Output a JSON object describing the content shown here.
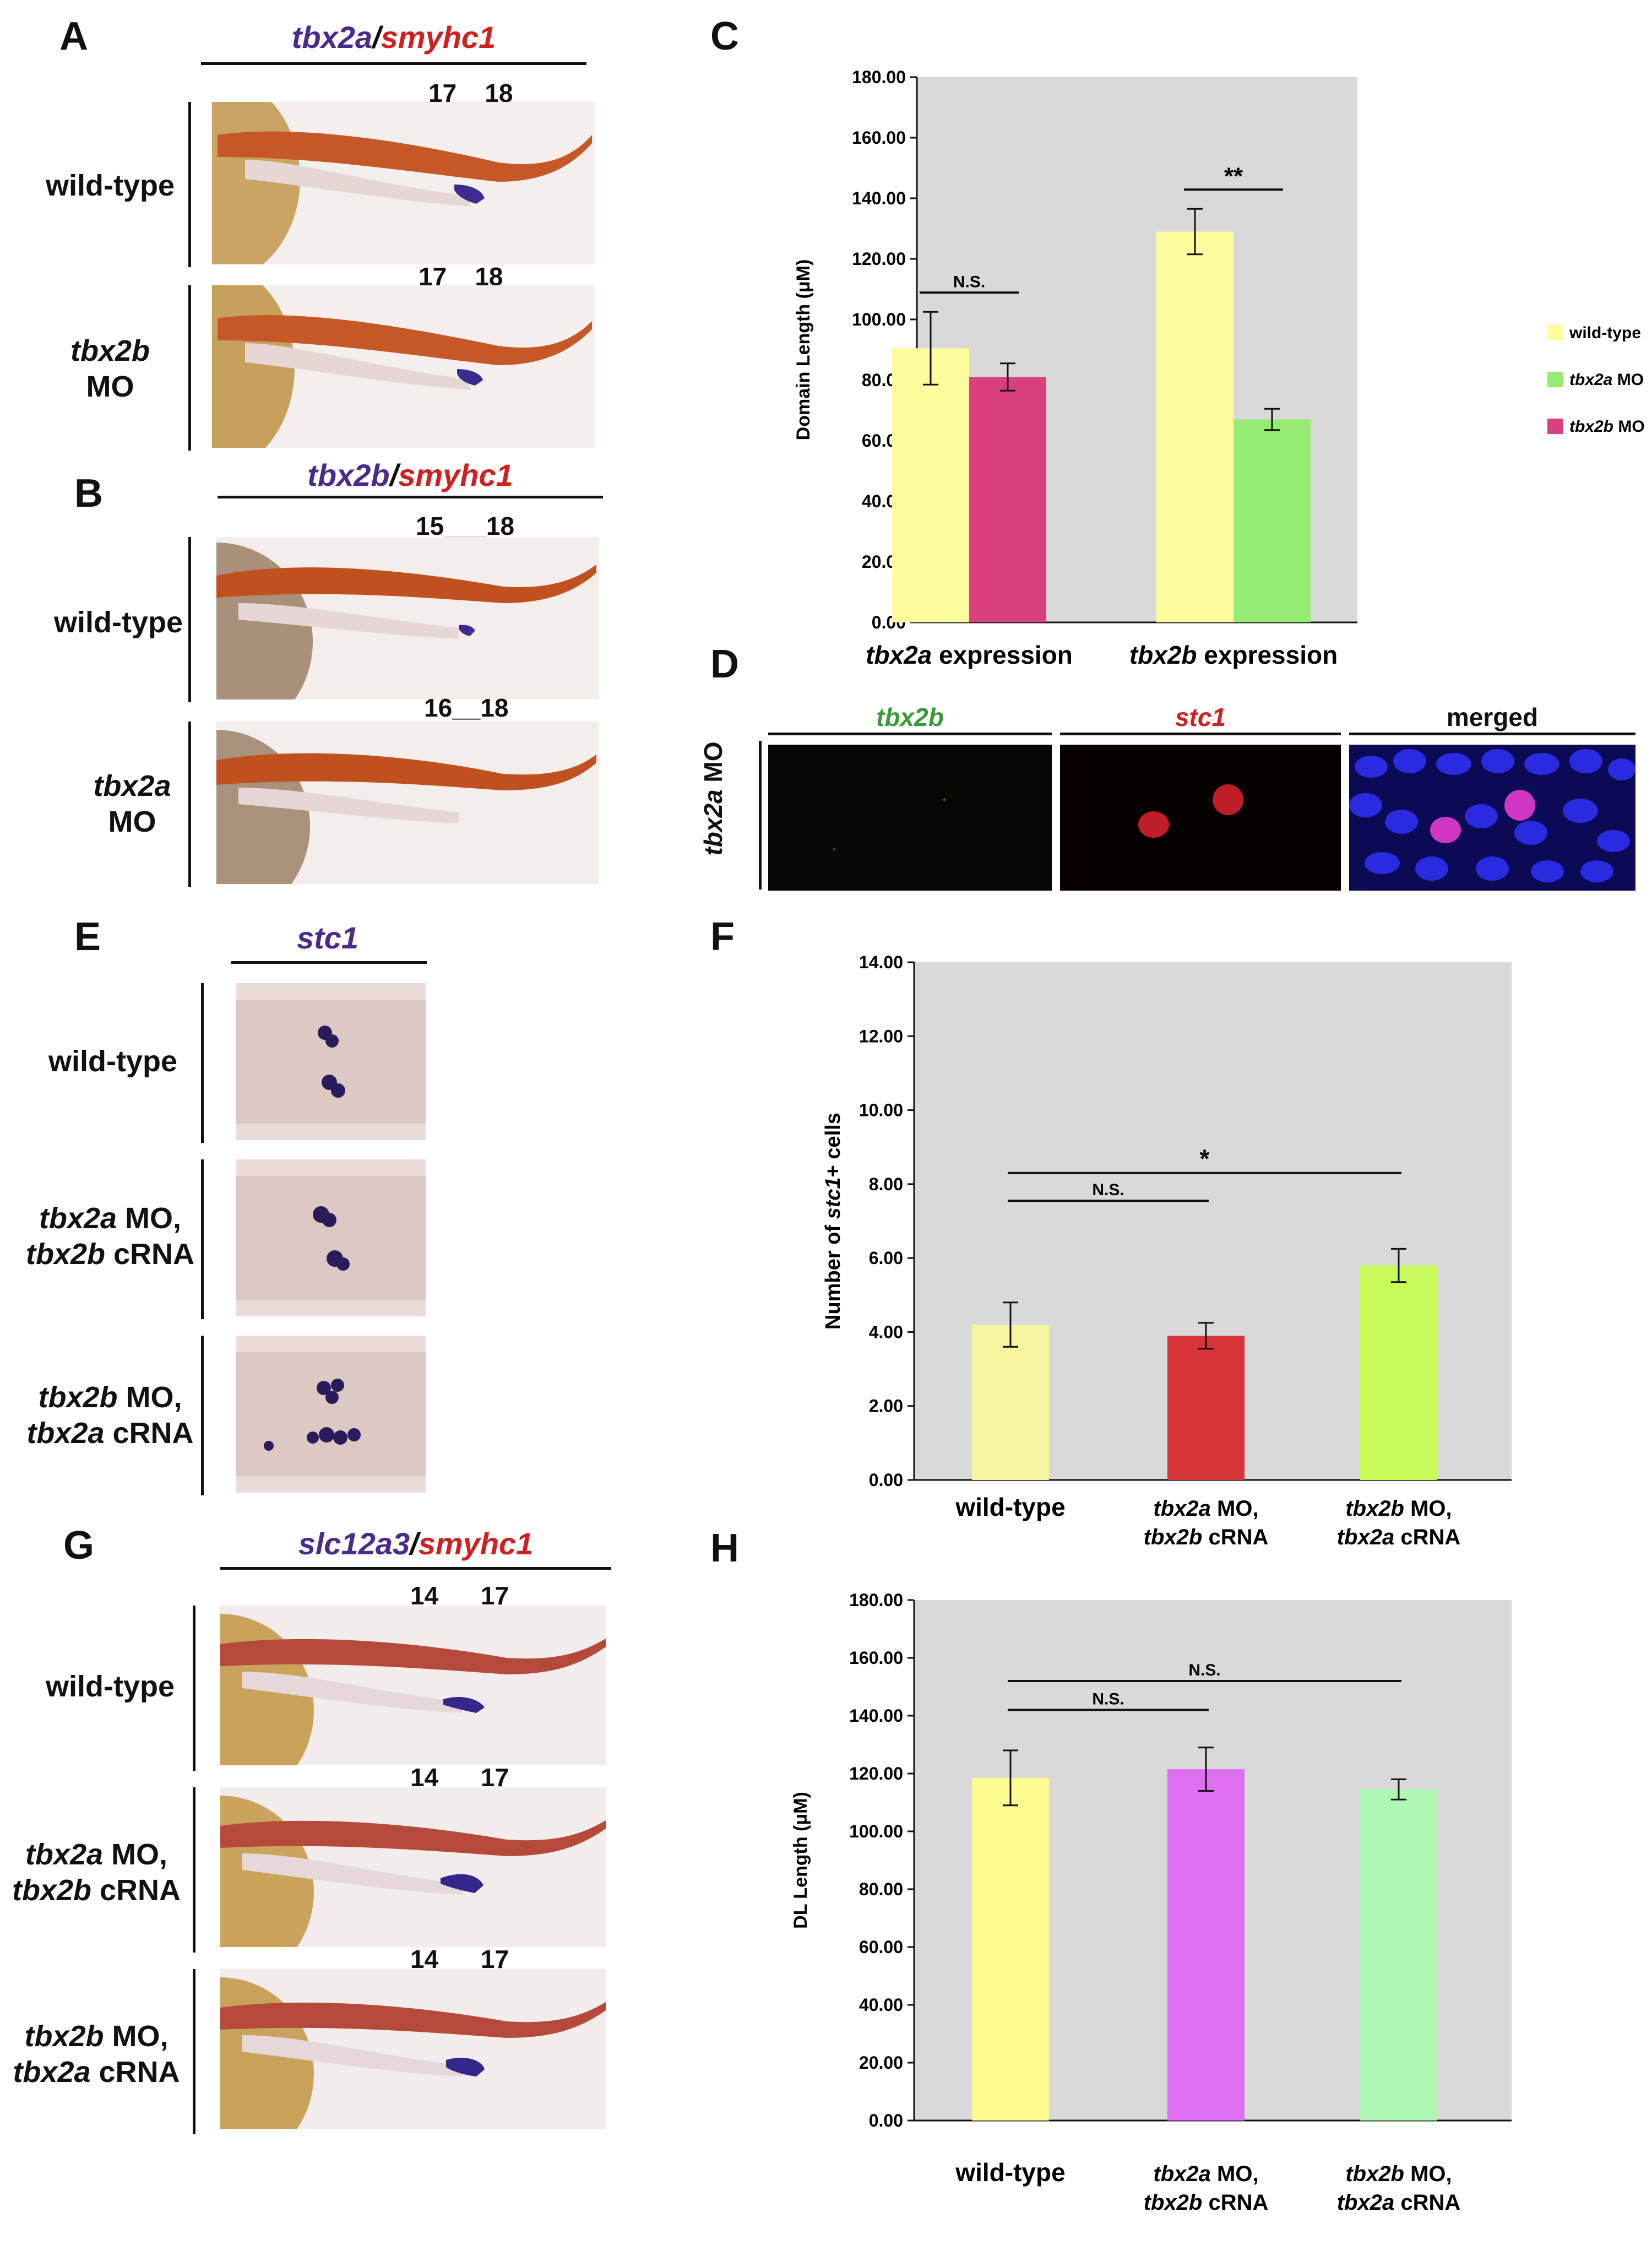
{
  "panel_letters": {
    "A": "A",
    "B": "B",
    "C": "C",
    "D": "D",
    "E": "E",
    "F": "F",
    "G": "G",
    "H": "H"
  },
  "panelA": {
    "gene1": "tbx2a",
    "sep": "/",
    "gene2": "smyhc1",
    "rows": [
      {
        "label_line1": "wild-type",
        "label_line2": "",
        "label_italic": "",
        "somites": "17__18"
      },
      {
        "label_line1": "tbx2b",
        "label_line2": "MO",
        "somites": "17__18"
      }
    ]
  },
  "panelB": {
    "gene1": "tbx2b",
    "sep": "/",
    "gene2": "smyhc1",
    "rows": [
      {
        "label_line1": "wild-type",
        "label_line2": "",
        "somites": "15___18"
      },
      {
        "label_line1": "tbx2a",
        "label_line2": "MO",
        "somites": "16__18"
      }
    ]
  },
  "panelD": {
    "row_label_gene": "tbx2a",
    "row_label_rest": " MO",
    "headers": [
      "tbx2b",
      "stc1",
      "merged"
    ]
  },
  "panelE": {
    "gene": "stc1",
    "rows": [
      {
        "l1a": "wild-type",
        "l1b": "",
        "l2a": "",
        "l2b": ""
      },
      {
        "l1a": "tbx2a",
        "l1b": " MO,",
        "l2a": "tbx2b",
        "l2b": " cRNA"
      },
      {
        "l1a": "tbx2b",
        "l1b": " MO,",
        "l2a": "tbx2a",
        "l2b": " cRNA"
      }
    ]
  },
  "panelG": {
    "gene1": "slc12a3",
    "sep": "/",
    "gene2": "smyhc1",
    "rows": [
      {
        "l1a": "wild-type",
        "l1b": "",
        "l2a": "",
        "l2b": "",
        "somites": "14___17"
      },
      {
        "l1a": "tbx2a",
        "l1b": " MO,",
        "l2a": "tbx2b",
        "l2b": " cRNA",
        "somites": "14___17"
      },
      {
        "l1a": "tbx2b",
        "l1b": " MO,",
        "l2a": "tbx2a",
        "l2b": " cRNA",
        "somites": "14___17"
      }
    ]
  },
  "chart_data": [
    {
      "id": "C",
      "type": "bar",
      "ylabel": "Domain Length (μM)",
      "ylim": [
        0,
        180
      ],
      "yticks": [
        "0.00",
        "20.00",
        "40.00",
        "60.00",
        "80.00",
        "100.00",
        "120.00",
        "140.00",
        "160.00",
        "180.00"
      ],
      "groups": [
        {
          "label_gene": "tbx2a",
          "label_rest": " expression",
          "bars": [
            {
              "series": "wild-type",
              "value": 90.5,
              "err": 12,
              "color": "#fdfd9e"
            },
            {
              "series": "tbx2b MO",
              "value": 81,
              "err": 4.5,
              "color": "#d9407f"
            }
          ],
          "sig": "N.S."
        },
        {
          "label_gene": "tbx2b",
          "label_rest": " expression",
          "bars": [
            {
              "series": "wild-type",
              "value": 129,
              "err": 7.5,
              "color": "#fdfd9e"
            },
            {
              "series": "tbx2a MO",
              "value": 67,
              "err": 3.5,
              "color": "#96eb73"
            }
          ],
          "sig": "**"
        }
      ],
      "legend": [
        {
          "name": "wild-type",
          "gene": "",
          "rest": "wild-type",
          "color": "#fdfd9e"
        },
        {
          "name": "tbx2a MO",
          "gene": "tbx2a",
          "rest": " MO",
          "color": "#96eb73"
        },
        {
          "name": "tbx2b MO",
          "gene": "tbx2b",
          "rest": " MO",
          "color": "#d9407f"
        }
      ],
      "legend_position": "right",
      "grid": false
    },
    {
      "id": "F",
      "type": "bar",
      "ylabel_pre": "Number of ",
      "ylabel_gene": "stc1",
      "ylabel_post": "+ cells",
      "ylim": [
        0,
        14
      ],
      "yticks": [
        "0.00",
        "2.00",
        "4.00",
        "6.00",
        "8.00",
        "10.00",
        "12.00",
        "14.00"
      ],
      "categories": [
        {
          "l1a": "wild-type",
          "l1b": "",
          "l2a": "",
          "l2b": ""
        },
        {
          "l1a": "tbx2a",
          "l1b": " MO,",
          "l2a": "tbx2b",
          "l2b": " cRNA"
        },
        {
          "l1a": "tbx2b",
          "l1b": " MO,",
          "l2a": "tbx2a",
          "l2b": " cRNA"
        }
      ],
      "values": [
        4.2,
        3.9,
        5.8
      ],
      "errors": [
        0.6,
        0.35,
        0.45
      ],
      "colors": [
        "#f7f59f",
        "#d8353a",
        "#c8fb5a"
      ],
      "sigs": [
        {
          "from": 0,
          "to": 1,
          "label": "N.S."
        },
        {
          "from": 0,
          "to": 2,
          "label": "*"
        }
      ],
      "grid": false
    },
    {
      "id": "H",
      "type": "bar",
      "ylabel": "DL Length (μM)",
      "ylim": [
        0,
        180
      ],
      "yticks": [
        "0.00",
        "20.00",
        "40.00",
        "60.00",
        "80.00",
        "100.00",
        "120.00",
        "140.00",
        "160.00",
        "180.00"
      ],
      "categories": [
        {
          "l1a": "wild-type",
          "l1b": "",
          "l2a": "",
          "l2b": ""
        },
        {
          "l1a": "tbx2a",
          "l1b": " MO,",
          "l2a": "tbx2b",
          "l2b": " cRNA"
        },
        {
          "l1a": "tbx2b",
          "l1b": " MO,",
          "l2a": "tbx2a",
          "l2b": " cRNA"
        }
      ],
      "values": [
        118.5,
        121.5,
        114.5
      ],
      "errors": [
        9.5,
        7.5,
        3.5
      ],
      "colors": [
        "#fbfb8f",
        "#dd6ff0",
        "#aef8b4"
      ],
      "sigs": [
        {
          "from": 0,
          "to": 1,
          "label": "N.S."
        },
        {
          "from": 0,
          "to": 2,
          "label": "N.S."
        }
      ],
      "grid": false
    }
  ]
}
